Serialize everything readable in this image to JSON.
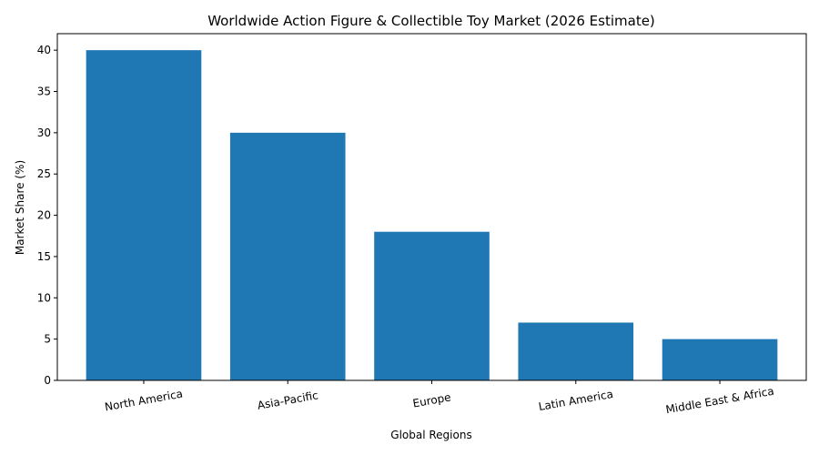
{
  "chart_data": {
    "type": "bar",
    "title": "Worldwide Action Figure & Collectible Toy Market (2026 Estimate)",
    "x_label": "Global Regions",
    "y_label": "Market Share (%)",
    "categories": [
      "North America",
      "Asia-Pacific",
      "Europe",
      "Latin America",
      "Middle East & Africa"
    ],
    "values": [
      40,
      30,
      18,
      7,
      5
    ],
    "color": "#1f77b4",
    "ylim": [
      0,
      42
    ],
    "yticks": [
      0,
      5,
      10,
      15,
      20,
      25,
      30,
      35,
      40
    ],
    "grid": false
  }
}
